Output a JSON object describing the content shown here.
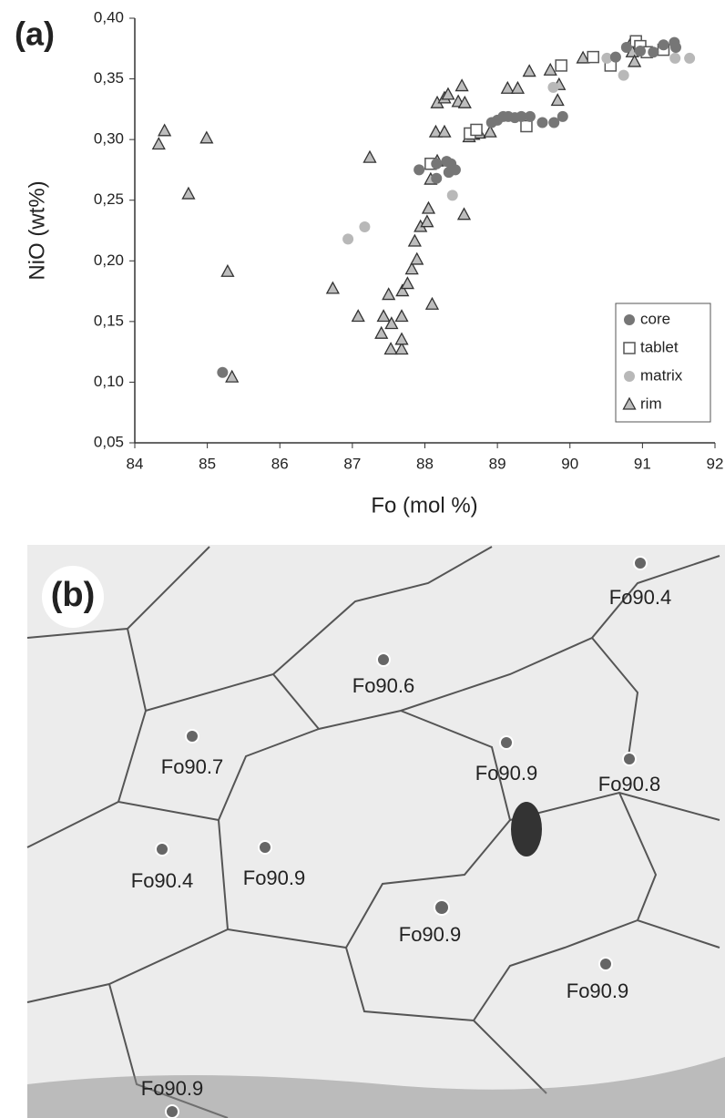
{
  "chart_data": {
    "type": "scatter",
    "panel_label": "(a)",
    "x_label": "Fo (mol %)",
    "y_label": "NiO (wt%)",
    "xlim": [
      84,
      92
    ],
    "xticks": [
      84,
      85,
      86,
      87,
      88,
      89,
      90,
      91,
      92
    ],
    "ylim": [
      0.05,
      0.4
    ],
    "yticks": [
      {
        "value": 0.05,
        "label": "0,05"
      },
      {
        "value": 0.1,
        "label": "0,10"
      },
      {
        "value": 0.15,
        "label": "0,15"
      },
      {
        "value": 0.2,
        "label": "0,20"
      },
      {
        "value": 0.25,
        "label": "0,25"
      },
      {
        "value": 0.3,
        "label": "0,30"
      },
      {
        "value": 0.35,
        "label": "0,35"
      },
      {
        "value": 0.4,
        "label": "0,40"
      }
    ],
    "legend": "lower right",
    "series": [
      {
        "name": "core",
        "marker": "circle",
        "color": "#767676",
        "x": [
          85.21,
          87.92,
          88.16,
          88.3,
          88.36,
          88.42,
          88.33,
          88.16,
          88.92,
          89.0,
          89.08,
          89.15,
          89.24,
          89.33,
          89.45,
          89.62,
          89.78,
          89.9,
          90.63,
          90.78,
          90.97,
          91.15,
          91.29,
          91.44,
          91.46
        ],
        "values": [
          0.108,
          0.275,
          0.28,
          0.282,
          0.28,
          0.275,
          0.273,
          0.268,
          0.314,
          0.316,
          0.319,
          0.319,
          0.318,
          0.319,
          0.319,
          0.314,
          0.314,
          0.319,
          0.368,
          0.376,
          0.373,
          0.372,
          0.378,
          0.38,
          0.376
        ]
      },
      {
        "name": "tablet",
        "marker": "square",
        "color": "#ffffff",
        "x": [
          88.08,
          88.62,
          88.71,
          89.4,
          89.88,
          90.32,
          90.56,
          90.91,
          90.97,
          91.06,
          91.29
        ],
        "values": [
          0.28,
          0.305,
          0.308,
          0.311,
          0.361,
          0.368,
          0.361,
          0.381,
          0.377,
          0.372,
          0.374
        ]
      },
      {
        "name": "matrix",
        "marker": "circle",
        "color": "#b8b8b8",
        "x": [
          86.94,
          87.17,
          88.38,
          89.77,
          90.51,
          90.74,
          91.45,
          91.65
        ],
        "values": [
          0.218,
          0.228,
          0.254,
          0.343,
          0.367,
          0.353,
          0.367,
          0.367
        ]
      },
      {
        "name": "rim",
        "marker": "triangle",
        "color": "#bdbdbd",
        "x": [
          84.33,
          84.41,
          84.99,
          84.74,
          85.28,
          85.34,
          87.24,
          86.73,
          87.08,
          87.43,
          87.4,
          87.5,
          87.54,
          87.53,
          87.68,
          87.68,
          87.68,
          87.69,
          87.76,
          87.82,
          87.89,
          87.86,
          87.94,
          88.03,
          88.05,
          88.08,
          88.1,
          88.17,
          88.15,
          88.27,
          88.17,
          88.27,
          88.32,
          88.46,
          88.54,
          88.51,
          88.55,
          88.61,
          88.67,
          88.75,
          88.9,
          89.14,
          89.28,
          89.44,
          89.73,
          89.83,
          89.85,
          90.18,
          90.85,
          90.86,
          90.89
        ],
        "values": [
          0.296,
          0.307,
          0.301,
          0.255,
          0.191,
          0.104,
          0.285,
          0.177,
          0.154,
          0.154,
          0.14,
          0.172,
          0.148,
          0.127,
          0.127,
          0.135,
          0.154,
          0.175,
          0.181,
          0.193,
          0.201,
          0.216,
          0.228,
          0.232,
          0.243,
          0.267,
          0.164,
          0.282,
          0.306,
          0.306,
          0.33,
          0.334,
          0.337,
          0.331,
          0.238,
          0.344,
          0.33,
          0.302,
          0.304,
          0.305,
          0.306,
          0.342,
          0.342,
          0.356,
          0.357,
          0.332,
          0.345,
          0.367,
          0.38,
          0.372,
          0.364
        ]
      }
    ]
  },
  "micrograph": {
    "panel_label": "(b)",
    "spots": [
      "Fo90.4",
      "Fo90.6",
      "Fo90.7",
      "Fo90.9",
      "Fo90.8",
      "Fo90.9",
      "Fo90.4",
      "Fo90.9",
      "Fo90.9",
      "Fo90.9"
    ]
  }
}
